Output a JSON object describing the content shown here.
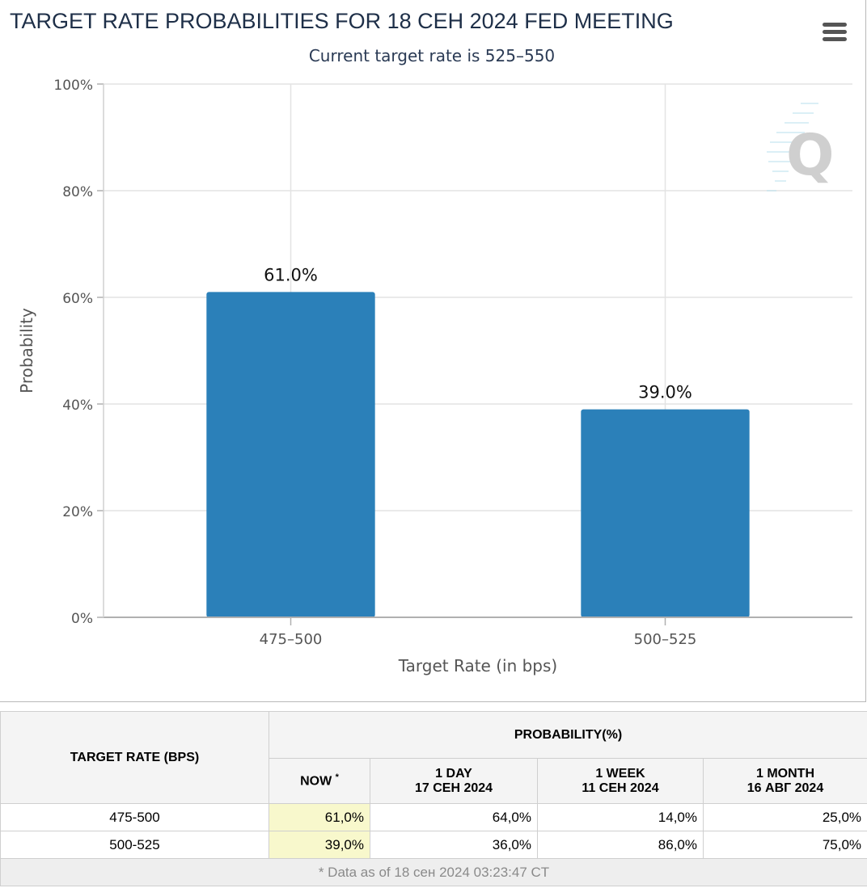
{
  "chart_data": {
    "type": "bar",
    "title": "TARGET RATE PROBABILITIES FOR 18 СЕН 2024 FED MEETING",
    "subtitle": "Current target rate is 525–550",
    "xlabel": "Target Rate (in bps)",
    "ylabel": "Probability",
    "categories": [
      "475–500",
      "500–525"
    ],
    "values": [
      61.0,
      39.0
    ],
    "data_labels": [
      "61.0%",
      "39.0%"
    ],
    "ylim": [
      0,
      100
    ],
    "yticks": [
      0,
      20,
      40,
      60,
      80,
      100
    ],
    "ytick_labels": [
      "0%",
      "20%",
      "40%",
      "60%",
      "80%",
      "100%"
    ],
    "grid": true,
    "bar_color": "#2b80b9"
  },
  "watermark_letter": "Q",
  "menu_icon": "hamburger-menu-icon",
  "table": {
    "header_rate": "TARGET RATE (BPS)",
    "header_probability": "PROBABILITY(%)",
    "col_now": "NOW",
    "col_now_mark": "*",
    "col_day": "1 DAY",
    "col_day_date": "17 СЕН 2024",
    "col_week": "1 WEEK",
    "col_week_date": "11 СЕН 2024",
    "col_month": "1 MONTH",
    "col_month_date": "16 АВГ 2024",
    "rows": [
      {
        "rate": "475-500",
        "now": "61,0%",
        "day": "64,0%",
        "week": "14,0%",
        "month": "25,0%"
      },
      {
        "rate": "500-525",
        "now": "39,0%",
        "day": "36,0%",
        "week": "86,0%",
        "month": "75,0%"
      }
    ],
    "footnote": "* Data as of 18 сен 2024 03:23:47 CT",
    "now_highlight_color": "#f8f8cc"
  }
}
